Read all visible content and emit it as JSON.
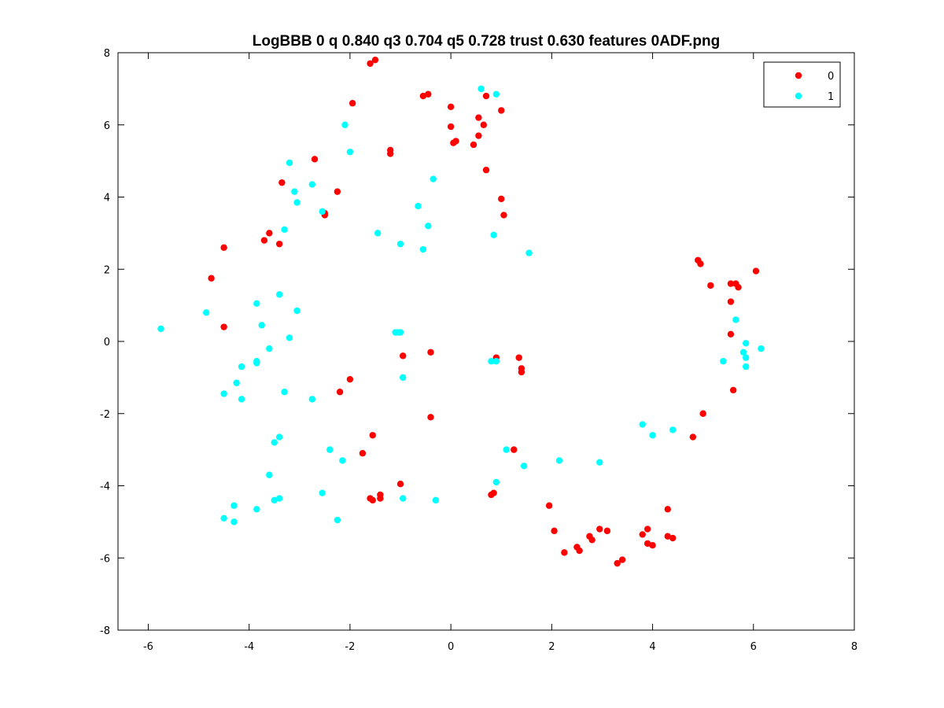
{
  "chart_data": {
    "type": "scatter",
    "title": "LogBBB 0 q 0.840 q3 0.704 q5 0.728 trust 0.630 features 0ADF.png",
    "xlabel": "",
    "ylabel": "",
    "xlim": [
      -6.6,
      8
    ],
    "ylim": [
      -8,
      8
    ],
    "xticks": [
      -6,
      -4,
      -2,
      0,
      2,
      4,
      6,
      8
    ],
    "yticks": [
      -8,
      -6,
      -4,
      -2,
      0,
      2,
      4,
      6,
      8
    ],
    "grid": false,
    "legend_position": "top-right",
    "series": [
      {
        "name": "0",
        "color": "#ff0000",
        "points": [
          [
            -1.6,
            7.7
          ],
          [
            -1.5,
            7.8
          ],
          [
            -1.95,
            6.6
          ],
          [
            -0.55,
            6.8
          ],
          [
            -0.45,
            6.85
          ],
          [
            0.7,
            6.8
          ],
          [
            0.0,
            6.5
          ],
          [
            1.0,
            6.4
          ],
          [
            0.55,
            6.2
          ],
          [
            0.65,
            6.0
          ],
          [
            0.0,
            5.95
          ],
          [
            0.55,
            5.7
          ],
          [
            0.05,
            5.5
          ],
          [
            0.1,
            5.55
          ],
          [
            0.45,
            5.45
          ],
          [
            -1.2,
            5.3
          ],
          [
            -1.2,
            5.2
          ],
          [
            -2.7,
            5.05
          ],
          [
            0.7,
            4.75
          ],
          [
            -3.35,
            4.4
          ],
          [
            -2.25,
            4.15
          ],
          [
            1.0,
            3.95
          ],
          [
            -2.5,
            3.55
          ],
          [
            -2.5,
            3.5
          ],
          [
            1.05,
            3.5
          ],
          [
            -3.6,
            3.0
          ],
          [
            -3.7,
            2.8
          ],
          [
            -3.4,
            2.7
          ],
          [
            -4.5,
            2.6
          ],
          [
            -4.75,
            1.75
          ],
          [
            -4.5,
            0.4
          ],
          [
            -0.95,
            -0.4
          ],
          [
            -0.4,
            -0.3
          ],
          [
            0.9,
            -0.45
          ],
          [
            1.35,
            -0.45
          ],
          [
            1.4,
            -0.75
          ],
          [
            1.4,
            -0.85
          ],
          [
            -2.0,
            -1.05
          ],
          [
            -2.2,
            -1.4
          ],
          [
            -0.4,
            -2.1
          ],
          [
            -1.55,
            -2.6
          ],
          [
            1.25,
            -3.0
          ],
          [
            -1.75,
            -3.1
          ],
          [
            -1.0,
            -3.95
          ],
          [
            0.85,
            -4.2
          ],
          [
            0.8,
            -4.25
          ],
          [
            -1.4,
            -4.25
          ],
          [
            -1.4,
            -4.35
          ],
          [
            -1.6,
            -4.35
          ],
          [
            -1.55,
            -4.4
          ],
          [
            1.95,
            -4.55
          ],
          [
            4.3,
            -4.65
          ],
          [
            2.05,
            -5.25
          ],
          [
            2.25,
            -5.85
          ],
          [
            2.5,
            -5.7
          ],
          [
            2.55,
            -5.8
          ],
          [
            2.75,
            -5.4
          ],
          [
            2.8,
            -5.5
          ],
          [
            2.95,
            -5.2
          ],
          [
            3.1,
            -5.25
          ],
          [
            3.3,
            -6.15
          ],
          [
            3.4,
            -6.05
          ],
          [
            3.8,
            -5.35
          ],
          [
            3.9,
            -5.2
          ],
          [
            3.9,
            -5.6
          ],
          [
            4.0,
            -5.65
          ],
          [
            4.3,
            -5.4
          ],
          [
            4.4,
            -5.45
          ],
          [
            4.8,
            -2.65
          ],
          [
            5.0,
            -2.0
          ],
          [
            5.6,
            -1.35
          ],
          [
            4.9,
            2.25
          ],
          [
            4.95,
            2.15
          ],
          [
            5.15,
            1.55
          ],
          [
            5.55,
            1.6
          ],
          [
            5.65,
            1.6
          ],
          [
            5.7,
            1.5
          ],
          [
            5.55,
            1.1
          ],
          [
            5.55,
            0.2
          ],
          [
            6.05,
            1.95
          ]
        ]
      },
      {
        "name": "1",
        "color": "#00ffff",
        "points": [
          [
            0.6,
            7.0
          ],
          [
            0.9,
            6.85
          ],
          [
            -2.1,
            6.0
          ],
          [
            -2.0,
            5.25
          ],
          [
            -3.2,
            4.95
          ],
          [
            -3.1,
            4.15
          ],
          [
            -2.75,
            4.35
          ],
          [
            -3.05,
            3.85
          ],
          [
            -0.35,
            4.5
          ],
          [
            -2.55,
            3.6
          ],
          [
            -0.65,
            3.75
          ],
          [
            -0.45,
            3.2
          ],
          [
            -3.3,
            3.1
          ],
          [
            -1.45,
            3.0
          ],
          [
            0.85,
            2.95
          ],
          [
            -1.0,
            2.7
          ],
          [
            -0.55,
            2.55
          ],
          [
            1.55,
            2.45
          ],
          [
            -3.4,
            1.3
          ],
          [
            -3.85,
            1.05
          ],
          [
            -3.05,
            0.85
          ],
          [
            -4.85,
            0.8
          ],
          [
            -3.75,
            0.45
          ],
          [
            -5.75,
            0.35
          ],
          [
            -1.05,
            0.25
          ],
          [
            -1.1,
            0.25
          ],
          [
            -1.0,
            0.25
          ],
          [
            -3.2,
            0.1
          ],
          [
            -3.6,
            -0.2
          ],
          [
            -3.85,
            -0.55
          ],
          [
            -3.85,
            -0.6
          ],
          [
            -4.15,
            -0.7
          ],
          [
            -0.95,
            -1.0
          ],
          [
            -4.25,
            -1.15
          ],
          [
            -3.3,
            -1.4
          ],
          [
            -4.5,
            -1.45
          ],
          [
            -4.15,
            -1.6
          ],
          [
            -2.75,
            -1.6
          ],
          [
            0.8,
            -0.55
          ],
          [
            0.9,
            -0.55
          ],
          [
            3.8,
            -2.3
          ],
          [
            4.0,
            -2.6
          ],
          [
            4.4,
            -2.45
          ],
          [
            -3.4,
            -2.65
          ],
          [
            -3.5,
            -2.8
          ],
          [
            -2.4,
            -3.0
          ],
          [
            -2.15,
            -3.3
          ],
          [
            1.1,
            -3.0
          ],
          [
            2.15,
            -3.3
          ],
          [
            2.95,
            -3.35
          ],
          [
            1.45,
            -3.45
          ],
          [
            -3.6,
            -3.7
          ],
          [
            0.9,
            -3.9
          ],
          [
            -2.55,
            -4.2
          ],
          [
            -3.4,
            -4.35
          ],
          [
            -3.5,
            -4.4
          ],
          [
            -0.95,
            -4.35
          ],
          [
            -0.3,
            -4.4
          ],
          [
            -4.3,
            -4.55
          ],
          [
            -3.85,
            -4.65
          ],
          [
            -4.5,
            -4.9
          ],
          [
            -4.3,
            -5.0
          ],
          [
            -2.25,
            -4.95
          ],
          [
            5.65,
            0.6
          ],
          [
            5.85,
            -0.05
          ],
          [
            5.8,
            -0.3
          ],
          [
            5.85,
            -0.45
          ],
          [
            5.4,
            -0.55
          ],
          [
            5.85,
            -0.7
          ],
          [
            6.15,
            -0.2
          ]
        ]
      }
    ]
  }
}
